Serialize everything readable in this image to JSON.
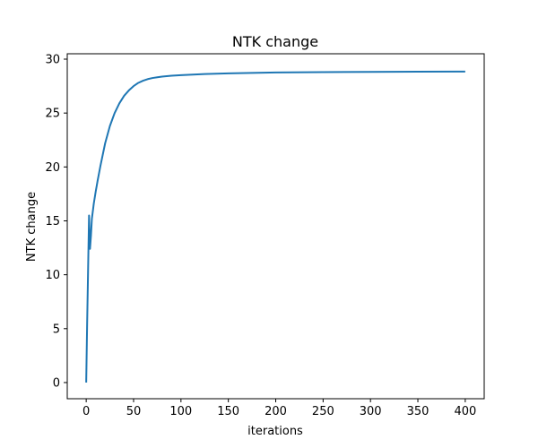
{
  "chart_data": {
    "type": "line",
    "title": "NTK change",
    "xlabel": "iterations",
    "ylabel": "NTK change",
    "xlim": [
      -20,
      420
    ],
    "ylim": [
      -1.5,
      30.5
    ],
    "xticks": [
      0,
      50,
      100,
      150,
      200,
      250,
      300,
      350,
      400
    ],
    "yticks": [
      0,
      5,
      10,
      15,
      20,
      25,
      30
    ],
    "grid": false,
    "series": [
      {
        "color": "#1f77b4",
        "x": [
          0,
          1,
          2,
          3,
          4,
          5,
          6,
          8,
          10,
          12,
          15,
          20,
          25,
          30,
          35,
          40,
          45,
          50,
          55,
          60,
          65,
          70,
          75,
          80,
          90,
          100,
          110,
          125,
          150,
          175,
          200,
          250,
          300,
          350,
          400
        ],
        "y": [
          0,
          5.5,
          10.5,
          15.5,
          12.4,
          13.6,
          15.2,
          16.6,
          17.7,
          18.7,
          20.1,
          22.2,
          23.8,
          25.0,
          25.9,
          26.6,
          27.1,
          27.5,
          27.8,
          28.0,
          28.15,
          28.25,
          28.32,
          28.38,
          28.46,
          28.52,
          28.56,
          28.62,
          28.68,
          28.72,
          28.76,
          28.8,
          28.82,
          28.84,
          28.85
        ]
      }
    ]
  }
}
